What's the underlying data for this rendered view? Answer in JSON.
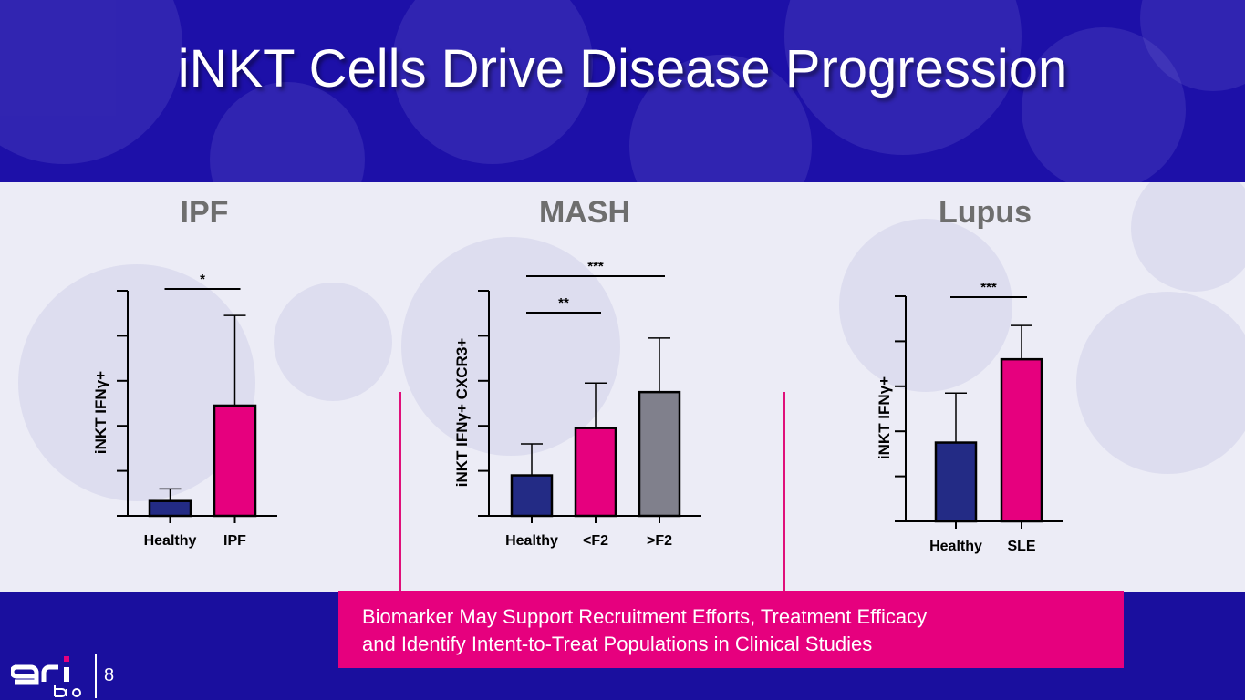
{
  "title": "iNKT Cells Drive Disease Progression",
  "colors": {
    "healthy": "#232b85",
    "disease": "#e6007e",
    "advanced": "#80808c",
    "accent": "#e6007e",
    "band": "#1a0f9e"
  },
  "callout": {
    "line1": "Biomarker May Support Recruitment Efforts, Treatment Efficacy",
    "line2": "and Identify Intent-to-Treat Populations in Clinical Studies"
  },
  "page_number": "8",
  "logo": {
    "text": "gri bio"
  },
  "chart_data": [
    {
      "type": "bar",
      "title": "IPF",
      "ylabel": "iNKT IFNγ+",
      "ylim": [
        0,
        5
      ],
      "categories": [
        "Healthy",
        "IPF"
      ],
      "values": [
        0.33,
        2.45
      ],
      "errors": [
        0.27,
        2.0
      ],
      "colors": [
        "#232b85",
        "#e6007e"
      ],
      "significance": [
        {
          "from": 0,
          "to": 1,
          "label": "*"
        }
      ]
    },
    {
      "type": "bar",
      "title": "MASH",
      "ylabel": "iNKT IFNγ+ CXCR3+",
      "ylim": [
        0,
        5
      ],
      "categories": [
        "Healthy",
        "<F2",
        ">F2"
      ],
      "values": [
        0.9,
        1.95,
        2.75
      ],
      "errors": [
        0.7,
        1.0,
        1.2
      ],
      "colors": [
        "#232b85",
        "#e6007e",
        "#80808c"
      ],
      "significance": [
        {
          "from": 0,
          "to": 1,
          "label": "**"
        },
        {
          "from": 0,
          "to": 2,
          "label": "***"
        }
      ]
    },
    {
      "type": "bar",
      "title": "Lupus",
      "ylabel": "iNKT IFNγ+",
      "ylim": [
        0,
        5
      ],
      "categories": [
        "Healthy",
        "SLE"
      ],
      "values": [
        1.75,
        3.6
      ],
      "errors": [
        1.1,
        0.75
      ],
      "colors": [
        "#232b85",
        "#e6007e"
      ],
      "significance": [
        {
          "from": 0,
          "to": 1,
          "label": "***"
        }
      ]
    }
  ]
}
